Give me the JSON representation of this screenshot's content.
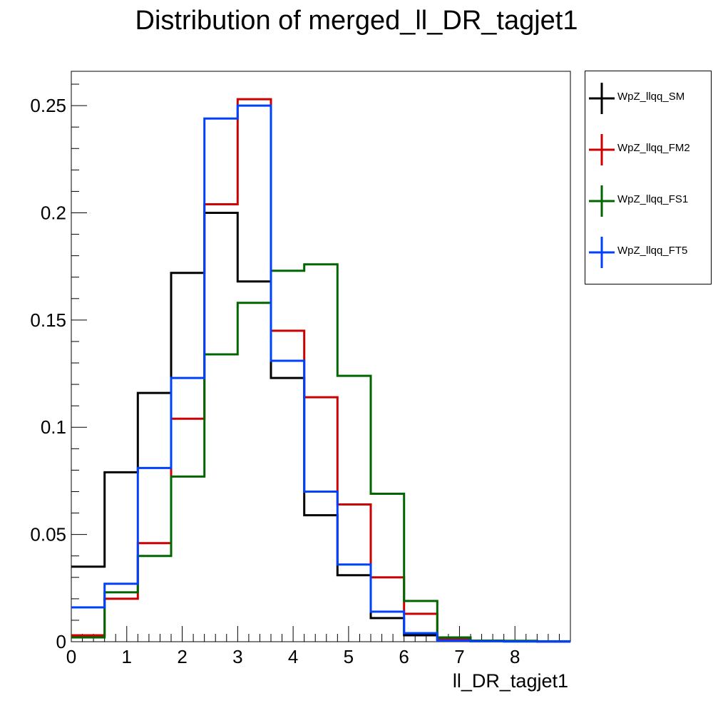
{
  "chart_data": {
    "type": "line",
    "style": "step histogram",
    "title": "Distribution of merged_ll_DR_tagjet1",
    "xlabel": "ll_DR_tagjet1",
    "ylabel": "",
    "xlim": [
      0,
      9
    ],
    "ylim": [
      0,
      0.266
    ],
    "x_ticks": [
      "0",
      "1",
      "2",
      "3",
      "4",
      "5",
      "6",
      "7",
      "8"
    ],
    "y_ticks": [
      "0",
      "0.05",
      "0.1",
      "0.15",
      "0.2",
      "0.25"
    ],
    "bin_edges": [
      0,
      0.6,
      1.2,
      1.8,
      2.4,
      3.0,
      3.6,
      4.2,
      4.8,
      5.4,
      6.0,
      6.6,
      7.2,
      7.8,
      8.4,
      9.0
    ],
    "series": [
      {
        "name": "WpZ_llqq_SM",
        "color": "#000000",
        "values": [
          0.035,
          0.079,
          0.116,
          0.172,
          0.2,
          0.168,
          0.123,
          0.059,
          0.031,
          0.011,
          0.003,
          0.001,
          0.0003,
          0.0002,
          0.0001
        ]
      },
      {
        "name": "WpZ_llqq_FM2",
        "color": "#cc0000",
        "values": [
          0.003,
          0.02,
          0.046,
          0.104,
          0.204,
          0.253,
          0.145,
          0.114,
          0.064,
          0.03,
          0.013,
          0.001,
          0.0003,
          0.0003,
          0.0001
        ]
      },
      {
        "name": "WpZ_llqq_FS1",
        "color": "#006600",
        "values": [
          0.002,
          0.023,
          0.04,
          0.077,
          0.134,
          0.158,
          0.173,
          0.176,
          0.124,
          0.069,
          0.019,
          0.002,
          0.0005,
          0.0004,
          0.0002
        ]
      },
      {
        "name": "WpZ_llqq_FT5",
        "color": "#0040ff",
        "values": [
          0.016,
          0.027,
          0.081,
          0.123,
          0.244,
          0.25,
          0.131,
          0.07,
          0.036,
          0.014,
          0.004,
          0.0005,
          0.0002,
          0.0001,
          0.0001
        ]
      }
    ],
    "grid": false,
    "legend_position": "right"
  }
}
